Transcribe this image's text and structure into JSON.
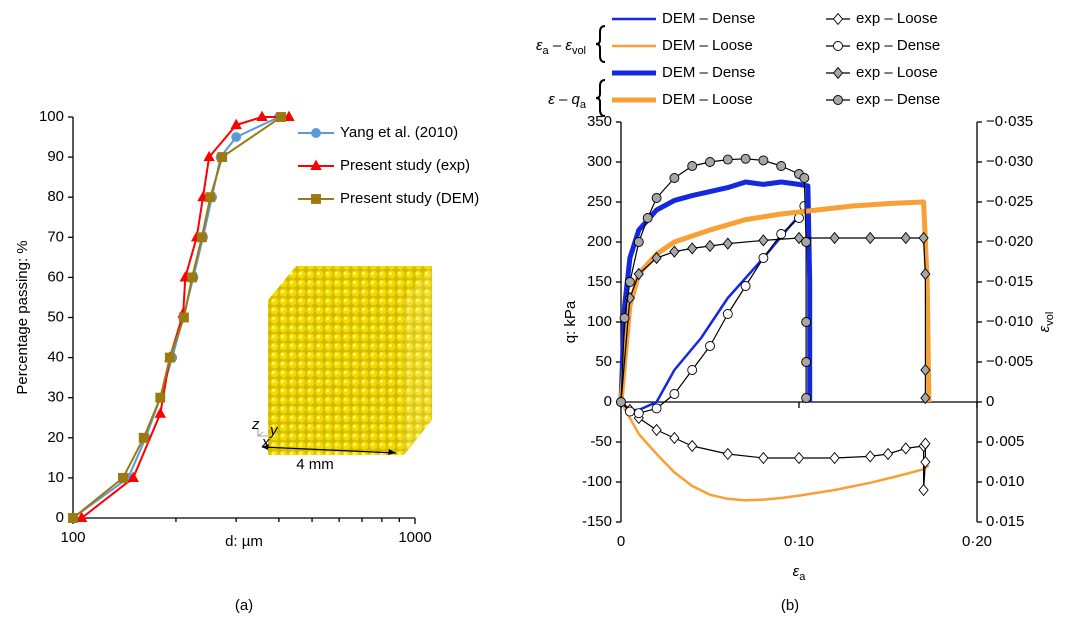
{
  "chart_data": [
    {
      "type": "line",
      "caption": "(a)",
      "xscale": "log",
      "xlim": [
        100,
        1000
      ],
      "xticks": [
        100,
        1000
      ],
      "xminorticks": [
        200,
        300,
        400,
        500,
        600,
        700,
        800,
        900
      ],
      "ylim": [
        0,
        100
      ],
      "yticks": [
        0,
        10,
        20,
        30,
        40,
        50,
        60,
        70,
        80,
        90,
        100
      ],
      "xlabel": "d: µm",
      "ylabel": "Percentage passing: %",
      "legend": "upper right",
      "series": [
        {
          "name": "Yang et al. (2010)",
          "color": "#5b9bd5",
          "marker": "circle",
          "marker_fill": "#5b9bd5",
          "width": 2,
          "x": [
            100,
            145,
            163,
            180,
            195,
            210,
            225,
            240,
            255,
            270,
            300,
            400
          ],
          "values": [
            0,
            10,
            20,
            30,
            40,
            50,
            60,
            70,
            80,
            90,
            95,
            100
          ]
        },
        {
          "name": "Present study (exp)",
          "color": "#ff0000",
          "marker": "triangle",
          "marker_fill": "#ff0000",
          "width": 2,
          "x": [
            106,
            150,
            180,
            192,
            210,
            213,
            230,
            240,
            250,
            300,
            357,
            428
          ],
          "values": [
            0,
            10,
            26,
            40,
            51,
            60,
            70,
            80,
            90,
            98,
            100,
            100
          ]
        },
        {
          "name": "Present study (DEM)",
          "color": "#9c7a12",
          "marker": "square",
          "marker_fill": "#9c7a12",
          "width": 2,
          "x": [
            100,
            140,
            161,
            180,
            192,
            211,
            223,
            238,
            252,
            273,
            406
          ],
          "values": [
            0,
            10,
            20,
            30,
            40,
            50,
            60,
            70,
            80,
            90,
            100
          ]
        }
      ],
      "inset": {
        "scale_label": "4 mm",
        "axes": [
          "z",
          "y",
          "x"
        ]
      }
    },
    {
      "type": "line",
      "caption": "(b)",
      "xlim": [
        0,
        0.2
      ],
      "xticks": [
        {
          "value": 0,
          "label": "0"
        },
        {
          "value": 0.1,
          "label": "0·10"
        },
        {
          "value": 0.2,
          "label": "0·20"
        }
      ],
      "ylim": [
        -150,
        350
      ],
      "yticks": [
        -150,
        -100,
        -50,
        0,
        50,
        100,
        150,
        200,
        250,
        300,
        350
      ],
      "y2lim": [
        0.015,
        -0.035
      ],
      "y2ticks": [
        {
          "value": 0.015,
          "label": "0·015"
        },
        {
          "value": 0.01,
          "label": "0·010"
        },
        {
          "value": 0.005,
          "label": "0·005"
        },
        {
          "value": 0,
          "label": "0"
        },
        {
          "value": -0.005,
          "label": "−0·005"
        },
        {
          "value": -0.01,
          "label": "−0·010"
        },
        {
          "value": -0.015,
          "label": "−0·015"
        },
        {
          "value": -0.02,
          "label": "−0·020"
        },
        {
          "value": -0.025,
          "label": "−0·025"
        },
        {
          "value": -0.03,
          "label": "−0·030"
        },
        {
          "value": -0.035,
          "label": "−0·035"
        }
      ],
      "xlabel": {
        "base": "ε",
        "sub": "a"
      },
      "ylabel": "q: kPa",
      "y2label": {
        "base": "ε",
        "sub": "vol"
      },
      "legend": "above",
      "legend_groups": [
        [
          {
            "text": "ε",
            "sub": "a"
          },
          {
            "text": " – ε",
            "sub": "vol"
          }
        ],
        [
          {
            "text": "ε – q",
            "sub": "a"
          }
        ]
      ],
      "series": [
        {
          "name": "DEM – Dense",
          "group": 0,
          "axis": "y2",
          "color": "#1428e0",
          "width": 2.5,
          "marker": "none",
          "x": [
            0,
            0.005,
            0.01,
            0.02,
            0.03,
            0.045,
            0.06,
            0.08,
            0.095,
            0.105
          ],
          "values": [
            0,
            0.001,
            0.001,
            0,
            -0.004,
            -0.008,
            -0.013,
            -0.018,
            -0.022,
            -0.0245
          ]
        },
        {
          "name": "DEM – Loose",
          "group": 0,
          "axis": "y2",
          "color": "#f7a035",
          "width": 2.5,
          "marker": "none",
          "x": [
            0,
            0.01,
            0.02,
            0.03,
            0.04,
            0.05,
            0.06,
            0.07,
            0.08,
            0.09,
            0.1,
            0.12,
            0.14,
            0.16,
            0.17,
            0.173
          ],
          "values": [
            0,
            0.004,
            0.0065,
            0.0088,
            0.0105,
            0.0116,
            0.0121,
            0.0123,
            0.0122,
            0.012,
            0.0117,
            0.011,
            0.0101,
            0.009,
            0.0084,
            0.0079
          ]
        },
        {
          "name": "exp – Loose",
          "group": 0,
          "axis": "y2",
          "color": "#000000",
          "width": 1.2,
          "marker": "diamond",
          "marker_fill": "#ffffff",
          "x": [
            0,
            0.005,
            0.01,
            0.02,
            0.03,
            0.04,
            0.06,
            0.08,
            0.1,
            0.12,
            0.14,
            0.15,
            0.16,
            0.17,
            0.17,
            0.171,
            0.171
          ],
          "values": [
            0,
            0.001,
            0.002,
            0.0035,
            0.0045,
            0.0055,
            0.0065,
            0.007,
            0.007,
            0.007,
            0.0068,
            0.0065,
            0.0058,
            0.0055,
            0.011,
            0.0075,
            0.0052
          ]
        },
        {
          "name": "exp – Dense",
          "group": 0,
          "axis": "y2",
          "color": "#000000",
          "width": 1.2,
          "marker": "circle",
          "marker_fill": "#ffffff",
          "x": [
            0,
            0.005,
            0.01,
            0.02,
            0.03,
            0.04,
            0.05,
            0.06,
            0.07,
            0.08,
            0.09,
            0.1,
            0.103
          ],
          "values": [
            0,
            0.0012,
            0.0014,
            0.0008,
            -0.001,
            -0.004,
            -0.007,
            -0.011,
            -0.0145,
            -0.018,
            -0.021,
            -0.023,
            -0.0245
          ]
        },
        {
          "name": "DEM – Dense",
          "group": 1,
          "color": "#1428e0",
          "width": 5,
          "marker": "none",
          "x": [
            0,
            0.002,
            0.005,
            0.01,
            0.02,
            0.03,
            0.04,
            0.05,
            0.06,
            0.07,
            0.08,
            0.09,
            0.1,
            0.105,
            0.106,
            0.106
          ],
          "values": [
            0,
            120,
            180,
            215,
            240,
            252,
            258,
            263,
            268,
            275,
            272,
            275,
            272,
            270,
            150,
            0
          ]
        },
        {
          "name": "DEM – Loose",
          "group": 1,
          "color": "#f7a035",
          "width": 5,
          "marker": "none",
          "x": [
            0,
            0.005,
            0.01,
            0.02,
            0.03,
            0.05,
            0.07,
            0.09,
            0.11,
            0.13,
            0.15,
            0.17,
            0.172,
            0.173
          ],
          "values": [
            0,
            120,
            160,
            185,
            200,
            215,
            228,
            235,
            240,
            245,
            248,
            250,
            150,
            0
          ]
        },
        {
          "name": "exp – Loose",
          "group": 1,
          "color": "#000000",
          "width": 1.2,
          "marker": "diamond",
          "marker_fill": "#a6a6a6",
          "x": [
            0,
            0.005,
            0.01,
            0.02,
            0.03,
            0.04,
            0.05,
            0.06,
            0.08,
            0.1,
            0.12,
            0.14,
            0.16,
            0.17,
            0.171,
            0.171,
            0.171
          ],
          "values": [
            0,
            130,
            160,
            180,
            188,
            192,
            195,
            198,
            202,
            205,
            205,
            205,
            205,
            205,
            160,
            40,
            5
          ]
        },
        {
          "name": "exp – Dense",
          "group": 1,
          "color": "#000000",
          "width": 1.2,
          "marker": "circle",
          "marker_fill": "#a6a6a6",
          "x": [
            0,
            0.002,
            0.005,
            0.01,
            0.015,
            0.02,
            0.03,
            0.04,
            0.05,
            0.06,
            0.07,
            0.08,
            0.09,
            0.1,
            0.103,
            0.104,
            0.104,
            0.104,
            0.104
          ],
          "values": [
            0,
            105,
            150,
            200,
            230,
            255,
            280,
            295,
            300,
            303,
            304,
            302,
            295,
            285,
            280,
            200,
            100,
            50,
            5
          ]
        }
      ]
    }
  ]
}
